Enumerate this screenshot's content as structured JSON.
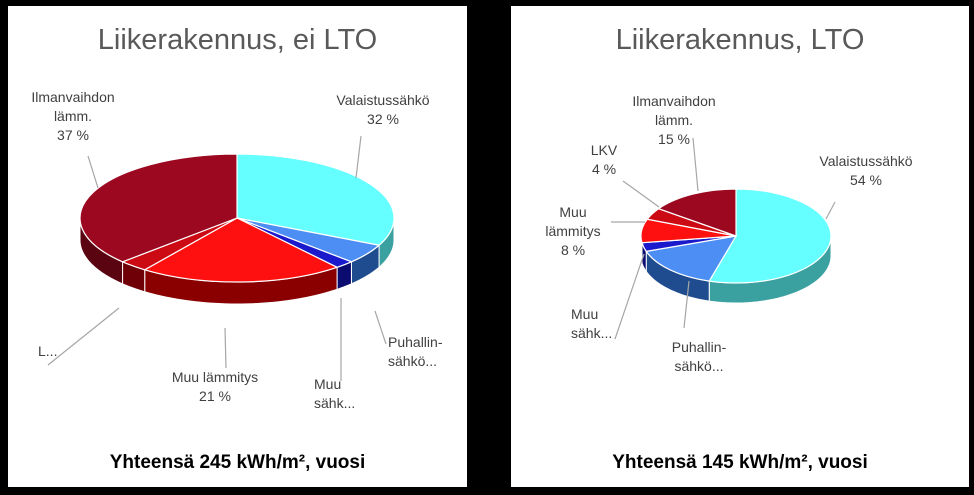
{
  "chart_data": [
    {
      "type": "pie",
      "title": "Liikerakennus, ei LTO",
      "footer": "Yhteensä 245 kWh/m², vuosi",
      "slices": [
        {
          "name": "Valaistussähkö",
          "value": 32,
          "label_lines": [
            "Valaistussähkö",
            "32 %"
          ],
          "color": "#66ffff",
          "side_color": "#3aa0a0"
        },
        {
          "name": "Puhallinsähkö",
          "value": 5,
          "label_lines": [
            "Puhallin-",
            "sähkö..."
          ],
          "color": "#4d8ef5",
          "side_color": "#1f4c8f"
        },
        {
          "name": "Muu sähkö",
          "value": 2,
          "label_lines": [
            "Muu",
            "sähk..."
          ],
          "color": "#1a1acc",
          "side_color": "#0c0c70"
        },
        {
          "name": "Muu lämmitys",
          "value": 21,
          "label_lines": [
            "Muu lämmitys",
            "21 %"
          ],
          "color": "#ff1010",
          "side_color": "#8a0000"
        },
        {
          "name": "LKV",
          "value": 3,
          "label_lines": [
            "L..."
          ],
          "color": "#cc0a14",
          "side_color": "#700008"
        },
        {
          "name": "Ilmanvaihdon lämm.",
          "value": 37,
          "label_lines": [
            "Ilmanvaihdon",
            "lämm.",
            "37 %"
          ],
          "color": "#9b0820",
          "side_color": "#5a0412"
        }
      ]
    },
    {
      "type": "pie",
      "title": "Liikerakennus, LTO",
      "footer": "Yhteensä 145 kWh/m², vuosi",
      "slices": [
        {
          "name": "Valaistussähkö",
          "value": 54,
          "label_lines": [
            "Valaistussähkö",
            "54 %"
          ],
          "color": "#66ffff",
          "side_color": "#3aa0a0"
        },
        {
          "name": "Puhallinsähkö",
          "value": 15,
          "label_lines": [
            "Puhallin-",
            "sähkö..."
          ],
          "color": "#4d8ef5",
          "side_color": "#1f4c8f"
        },
        {
          "name": "Muu sähkö",
          "value": 3,
          "label_lines": [
            "Muu",
            "sähk..."
          ],
          "color": "#1a1acc",
          "side_color": "#0c0c70"
        },
        {
          "name": "Muu lämmitys",
          "value": 8,
          "label_lines": [
            "Muu",
            "lämmitys",
            "8 %"
          ],
          "color": "#ff1010",
          "side_color": "#8a0000"
        },
        {
          "name": "LKV",
          "value": 4,
          "label_lines": [
            "LKV",
            "4 %"
          ],
          "color": "#cc0a14",
          "side_color": "#700008"
        },
        {
          "name": "Ilmanvaihdon lämm.",
          "value": 15,
          "label_lines": [
            "Ilmanvaihdon",
            "lämm.",
            "15 %"
          ],
          "color": "#9b0820",
          "side_color": "#5a0412"
        }
      ]
    }
  ]
}
